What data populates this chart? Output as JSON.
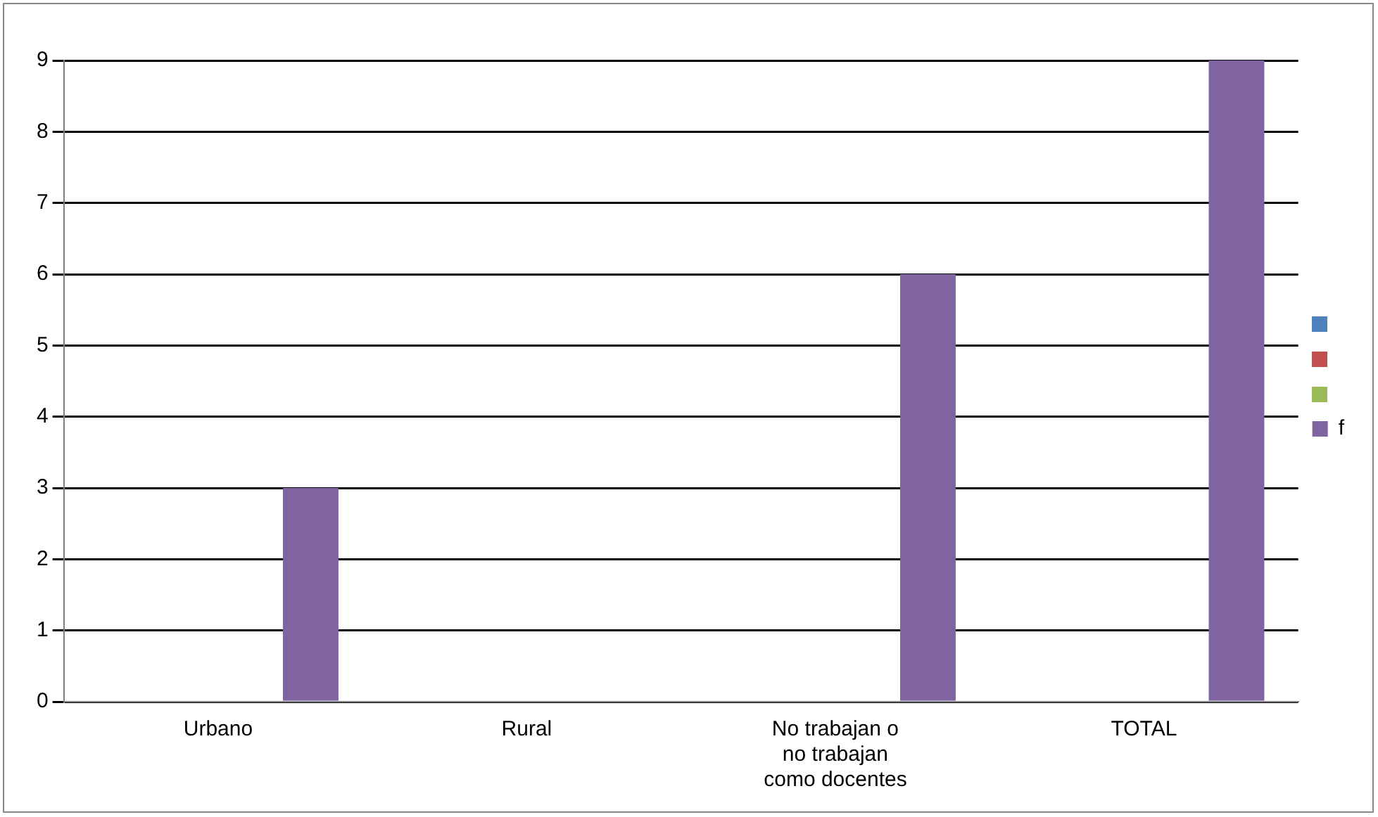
{
  "chart_data": {
    "type": "bar",
    "categories": [
      "Urbano",
      "Rural",
      "No trabajan o no trabajan como docentes",
      "TOTAL"
    ],
    "series": [
      {
        "color": "#4f81bd",
        "values": [
          null,
          null,
          null,
          null
        ]
      },
      {
        "color": "#c0504d",
        "values": [
          null,
          null,
          null,
          null
        ]
      },
      {
        "color": "#9bbb59",
        "values": [
          null,
          null,
          null,
          null
        ]
      },
      {
        "name": "f",
        "color": "#8064a2",
        "values": [
          3,
          null,
          6,
          9
        ]
      }
    ],
    "ylim": [
      0,
      9
    ],
    "yticks": [
      0,
      1,
      2,
      3,
      4,
      5,
      6,
      7,
      8,
      9
    ],
    "grid": "y",
    "legend": "right"
  }
}
